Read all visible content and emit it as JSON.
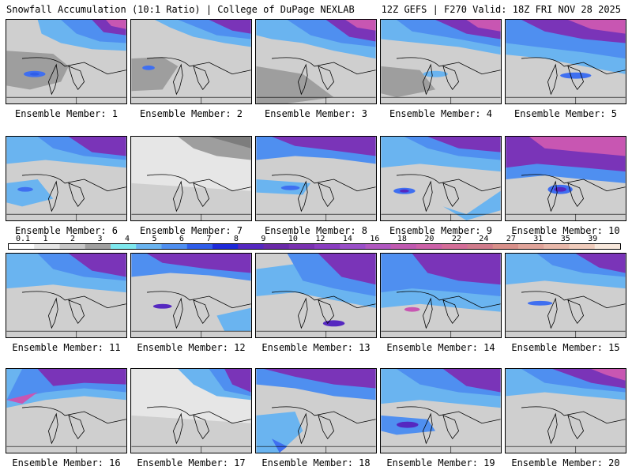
{
  "header": {
    "title": "Snowfall Accumulation (10:1 Ratio) | College of DuPage NEXLAB",
    "run_info": "12Z GEFS | F270 Valid: 18Z FRI NOV 28 2025"
  },
  "legend": {
    "labels": [
      "0.1",
      "1",
      "2",
      "3",
      "4",
      "5",
      "6",
      "7",
      "8",
      "9",
      "10",
      "12",
      "14",
      "16",
      "18",
      "20",
      "22",
      "24",
      "27",
      "31",
      "35",
      "39"
    ],
    "colors": [
      "#ffffff",
      "#e6e6e6",
      "#c8c8c8",
      "#a0a0a0",
      "#7ee8ee",
      "#6ab4f0",
      "#4f8ff0",
      "#2f5de8",
      "#1e2ad8",
      "#5528c0",
      "#6a2aa8",
      "#7a32b0",
      "#8a3ec0",
      "#9a50c8",
      "#b058c0",
      "#c05ab0",
      "#cc62a8",
      "#d46e98",
      "#d07c8c",
      "#d8908a",
      "#e0a49a",
      "#e8b8aa",
      "#f0ccbc",
      "#f8e8dc"
    ]
  },
  "colors": {
    "land": "#cfcfcf",
    "light_snow": "#9e9e9e",
    "heavy_gray": "#7d7d7d",
    "cyan": "#84e4ea",
    "blue": "#3f6ff0",
    "purple": "#7a34b8",
    "magenta": "#c856b2",
    "border": "#000000"
  },
  "panels": [
    {
      "caption": "Ensemble Member: 1"
    },
    {
      "caption": "Ensemble Member: 2"
    },
    {
      "caption": "Ensemble Member: 3"
    },
    {
      "caption": "Ensemble Member: 4"
    },
    {
      "caption": "Ensemble Member: 5"
    },
    {
      "caption": "Ensemble Member: 6"
    },
    {
      "caption": "Ensemble Member: 7"
    },
    {
      "caption": "Ensemble Member: 8"
    },
    {
      "caption": "Ensemble Member: 9"
    },
    {
      "caption": "Ensemble Member: 10"
    },
    {
      "caption": "Ensemble Member: 11"
    },
    {
      "caption": "Ensemble Member: 12"
    },
    {
      "caption": "Ensemble Member: 13"
    },
    {
      "caption": "Ensemble Member: 14"
    },
    {
      "caption": "Ensemble Member: 15"
    },
    {
      "caption": "Ensemble Member: 16"
    },
    {
      "caption": "Ensemble Member: 17"
    },
    {
      "caption": "Ensemble Member: 18"
    },
    {
      "caption": "Ensemble Member: 19"
    },
    {
      "caption": "Ensemble Member: 20"
    }
  ]
}
